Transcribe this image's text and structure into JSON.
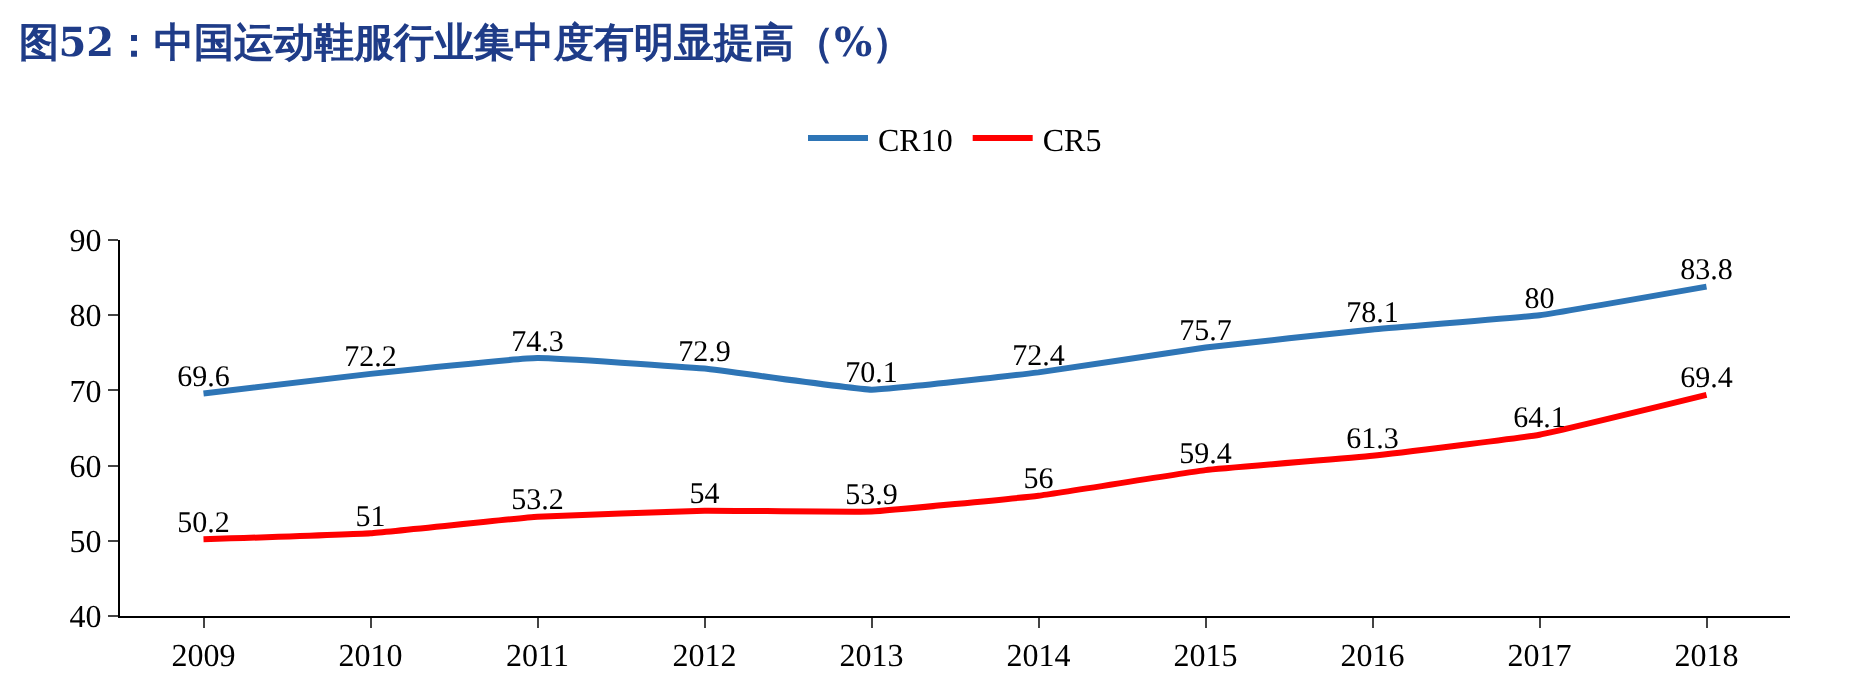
{
  "chart_data": {
    "type": "line",
    "title": "图52：中国运动鞋服行业集中度有明显提高（%）",
    "categories": [
      "2009",
      "2010",
      "2011",
      "2012",
      "2013",
      "2014",
      "2015",
      "2016",
      "2017",
      "2018"
    ],
    "series": [
      {
        "name": "CR10",
        "color": "#2e75b6",
        "values": [
          69.6,
          72.2,
          74.3,
          72.9,
          70.1,
          72.4,
          75.7,
          78.1,
          80,
          83.8
        ]
      },
      {
        "name": "CR5",
        "color": "#ff0000",
        "values": [
          50.2,
          51,
          53.2,
          54,
          53.9,
          56,
          59.4,
          61.3,
          64.1,
          69.4
        ]
      }
    ],
    "ylim": [
      40,
      90
    ],
    "yticks": [
      40,
      50,
      60,
      70,
      80,
      90
    ],
    "data_labels": true,
    "legend": "top"
  }
}
